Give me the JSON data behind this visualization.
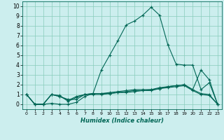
{
  "xlabel": "Humidex (Indice chaleur)",
  "bg_color": "#cceeee",
  "grid_color": "#88ccbb",
  "line_color": "#006655",
  "xlim": [
    -0.5,
    23.5
  ],
  "ylim": [
    -0.5,
    10.5
  ],
  "xticks": [
    0,
    1,
    2,
    3,
    4,
    5,
    6,
    7,
    8,
    9,
    10,
    11,
    12,
    13,
    14,
    15,
    16,
    17,
    18,
    19,
    20,
    21,
    22,
    23
  ],
  "yticks": [
    0,
    1,
    2,
    3,
    4,
    5,
    6,
    7,
    8,
    9,
    10
  ],
  "series": [
    [
      1.0,
      0.0,
      0.0,
      0.1,
      0.0,
      0.0,
      0.2,
      0.8,
      1.1,
      3.5,
      5.0,
      6.5,
      8.1,
      8.5,
      9.1,
      9.9,
      9.1,
      6.1,
      4.1,
      4.0,
      4.0,
      1.5,
      2.2,
      0.0
    ],
    [
      1.0,
      0.0,
      0.0,
      1.0,
      0.8,
      0.5,
      0.5,
      1.0,
      1.1,
      1.1,
      1.2,
      1.3,
      1.4,
      1.5,
      1.5,
      1.5,
      1.7,
      1.8,
      1.9,
      2.0,
      1.5,
      3.5,
      2.5,
      0.0
    ],
    [
      1.0,
      0.0,
      0.0,
      1.0,
      0.8,
      0.4,
      0.8,
      1.0,
      1.1,
      1.1,
      1.1,
      1.2,
      1.3,
      1.4,
      1.4,
      1.5,
      1.6,
      1.8,
      1.9,
      2.0,
      1.5,
      1.1,
      1.0,
      0.0
    ],
    [
      1.0,
      0.0,
      0.0,
      1.0,
      0.9,
      0.3,
      0.7,
      1.0,
      1.0,
      1.0,
      1.1,
      1.2,
      1.2,
      1.3,
      1.4,
      1.4,
      1.6,
      1.7,
      1.8,
      1.9,
      1.4,
      1.0,
      0.9,
      0.0
    ]
  ]
}
